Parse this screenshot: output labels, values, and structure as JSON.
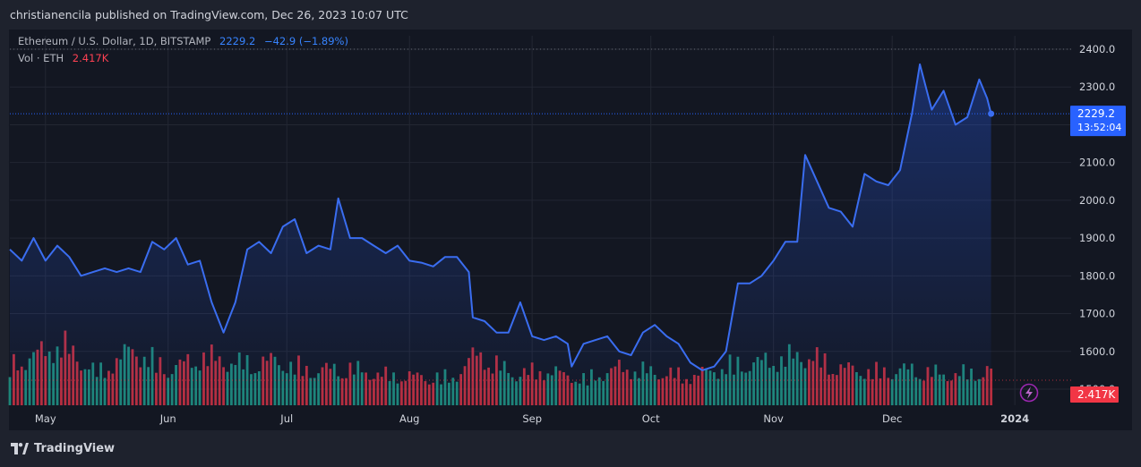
{
  "header": {
    "published_text": "christianencila published on TradingView.com, Dec 26, 2023 10:07 UTC"
  },
  "legend": {
    "symbol": "Ethereum / U.S. Dollar, 1D, BITSTAMP",
    "price": "2229.2",
    "change": "−42.9 (−1.89%)",
    "volume_label": "Vol · ETH",
    "volume_value": "2.417K"
  },
  "price_badge": {
    "price": "2229.2",
    "countdown": "13:52:04"
  },
  "volume_badge": "2.417K",
  "footer": {
    "logo_text": "TradingView"
  },
  "colors": {
    "line": "#2962ff",
    "up_volume": "#22ab94",
    "down_volume": "#f23645",
    "background": "#131722"
  },
  "icons": {
    "logo": "tradingview-logo-icon",
    "flash": "lightning-icon"
  },
  "chart_data": {
    "type": "line",
    "title": "Ethereum / U.S. Dollar, 1D, BITSTAMP",
    "ylim": [
      1500,
      2400
    ],
    "y_ticks": [
      1500,
      1600,
      1700,
      1800,
      1900,
      2000,
      2100,
      2200,
      2300,
      2400
    ],
    "y_tick_labels": [
      "1500.0",
      "1600.0",
      "1700.0",
      "1800.0",
      "1900.0",
      "2000.0",
      "2100.0",
      "2200.0",
      "2300.0",
      "2400.0"
    ],
    "x_tick_labels": [
      {
        "date": "2023-05-01",
        "label": "May"
      },
      {
        "date": "2023-06-01",
        "label": "Jun"
      },
      {
        "date": "2023-07-01",
        "label": "Jul"
      },
      {
        "date": "2023-08-01",
        "label": "Aug"
      },
      {
        "date": "2023-09-01",
        "label": "Sep"
      },
      {
        "date": "2023-10-01",
        "label": "Oct"
      },
      {
        "date": "2023-11-01",
        "label": "Nov"
      },
      {
        "date": "2023-12-01",
        "label": "Dec"
      },
      {
        "date": "2024-01-01",
        "label": "2024"
      }
    ],
    "x_range": [
      "2023-04-22",
      "2024-01-15"
    ],
    "last_price": 2229.2,
    "series": [
      {
        "name": "ETHUSD",
        "points": [
          [
            "2023-04-22",
            1870
          ],
          [
            "2023-04-25",
            1840
          ],
          [
            "2023-04-28",
            1900
          ],
          [
            "2023-05-01",
            1840
          ],
          [
            "2023-05-04",
            1880
          ],
          [
            "2023-05-07",
            1850
          ],
          [
            "2023-05-10",
            1800
          ],
          [
            "2023-05-13",
            1810
          ],
          [
            "2023-05-16",
            1820
          ],
          [
            "2023-05-19",
            1810
          ],
          [
            "2023-05-22",
            1820
          ],
          [
            "2023-05-25",
            1810
          ],
          [
            "2023-05-28",
            1890
          ],
          [
            "2023-05-31",
            1870
          ],
          [
            "2023-06-03",
            1900
          ],
          [
            "2023-06-06",
            1830
          ],
          [
            "2023-06-09",
            1840
          ],
          [
            "2023-06-12",
            1730
          ],
          [
            "2023-06-15",
            1650
          ],
          [
            "2023-06-18",
            1730
          ],
          [
            "2023-06-21",
            1870
          ],
          [
            "2023-06-24",
            1890
          ],
          [
            "2023-06-27",
            1860
          ],
          [
            "2023-06-30",
            1930
          ],
          [
            "2023-07-03",
            1950
          ],
          [
            "2023-07-06",
            1860
          ],
          [
            "2023-07-09",
            1880
          ],
          [
            "2023-07-12",
            1870
          ],
          [
            "2023-07-14",
            2005
          ],
          [
            "2023-07-17",
            1900
          ],
          [
            "2023-07-20",
            1900
          ],
          [
            "2023-07-23",
            1880
          ],
          [
            "2023-07-26",
            1860
          ],
          [
            "2023-07-29",
            1880
          ],
          [
            "2023-08-01",
            1840
          ],
          [
            "2023-08-04",
            1835
          ],
          [
            "2023-08-07",
            1825
          ],
          [
            "2023-08-10",
            1850
          ],
          [
            "2023-08-13",
            1850
          ],
          [
            "2023-08-16",
            1810
          ],
          [
            "2023-08-17",
            1690
          ],
          [
            "2023-08-20",
            1680
          ],
          [
            "2023-08-23",
            1650
          ],
          [
            "2023-08-26",
            1650
          ],
          [
            "2023-08-29",
            1730
          ],
          [
            "2023-09-01",
            1640
          ],
          [
            "2023-09-04",
            1630
          ],
          [
            "2023-09-07",
            1640
          ],
          [
            "2023-09-10",
            1620
          ],
          [
            "2023-09-11",
            1560
          ],
          [
            "2023-09-14",
            1620
          ],
          [
            "2023-09-17",
            1630
          ],
          [
            "2023-09-20",
            1640
          ],
          [
            "2023-09-23",
            1600
          ],
          [
            "2023-09-26",
            1590
          ],
          [
            "2023-09-29",
            1650
          ],
          [
            "2023-10-02",
            1670
          ],
          [
            "2023-10-05",
            1640
          ],
          [
            "2023-10-08",
            1620
          ],
          [
            "2023-10-11",
            1570
          ],
          [
            "2023-10-14",
            1550
          ],
          [
            "2023-10-17",
            1560
          ],
          [
            "2023-10-20",
            1600
          ],
          [
            "2023-10-23",
            1780
          ],
          [
            "2023-10-26",
            1780
          ],
          [
            "2023-10-29",
            1800
          ],
          [
            "2023-11-01",
            1840
          ],
          [
            "2023-11-04",
            1890
          ],
          [
            "2023-11-07",
            1890
          ],
          [
            "2023-11-09",
            2120
          ],
          [
            "2023-11-12",
            2050
          ],
          [
            "2023-11-15",
            1980
          ],
          [
            "2023-11-18",
            1970
          ],
          [
            "2023-11-21",
            1930
          ],
          [
            "2023-11-24",
            2070
          ],
          [
            "2023-11-27",
            2050
          ],
          [
            "2023-11-30",
            2040
          ],
          [
            "2023-12-03",
            2080
          ],
          [
            "2023-12-06",
            2230
          ],
          [
            "2023-12-08",
            2360
          ],
          [
            "2023-12-11",
            2240
          ],
          [
            "2023-12-14",
            2290
          ],
          [
            "2023-12-17",
            2200
          ],
          [
            "2023-12-20",
            2220
          ],
          [
            "2023-12-23",
            2320
          ],
          [
            "2023-12-25",
            2270
          ],
          [
            "2023-12-26",
            2229.2
          ]
        ]
      }
    ],
    "volume": {
      "name": "Vol · ETH",
      "last": "2.417K",
      "values": [
        [
          "2023-04-26",
          3.2
        ],
        [
          "2023-05-05",
          4.3
        ],
        [
          "2023-05-14",
          2.2
        ],
        [
          "2023-05-23",
          3.9
        ],
        [
          "2023-06-01",
          2.5
        ],
        [
          "2023-06-10",
          3.4
        ],
        [
          "2023-06-19",
          2.9
        ],
        [
          "2023-06-28",
          3.1
        ],
        [
          "2023-07-07",
          2.4
        ],
        [
          "2023-07-16",
          2.6
        ],
        [
          "2023-07-25",
          2.1
        ],
        [
          "2023-08-03",
          2.0
        ],
        [
          "2023-08-12",
          1.9
        ],
        [
          "2023-08-18",
          3.6
        ],
        [
          "2023-08-27",
          2.2
        ],
        [
          "2023-09-05",
          2.4
        ],
        [
          "2023-09-14",
          1.8
        ],
        [
          "2023-09-23",
          2.6
        ],
        [
          "2023-10-02",
          2.3
        ],
        [
          "2023-10-11",
          2.0
        ],
        [
          "2023-10-20",
          2.7
        ],
        [
          "2023-10-29",
          3.0
        ],
        [
          "2023-11-09",
          3.5
        ],
        [
          "2023-11-18",
          2.6
        ],
        [
          "2023-11-27",
          2.3
        ],
        [
          "2023-12-06",
          2.5
        ],
        [
          "2023-12-15",
          2.1
        ],
        [
          "2023-12-26",
          2.4
        ]
      ]
    }
  }
}
